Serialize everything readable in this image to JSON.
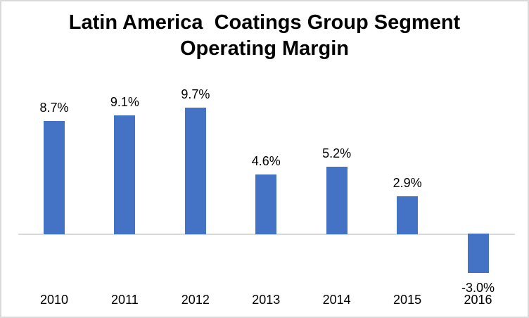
{
  "window": {
    "background": "#ffffff",
    "border_color": "#d9d9d9"
  },
  "chart_data": {
    "type": "bar",
    "title": "Latin America Coatings Group Segment Operating Margin",
    "title_lines": [
      "Latin America  Coatings Group Segment",
      "Operating Margin"
    ],
    "categories": [
      "2010",
      "2011",
      "2012",
      "2013",
      "2014",
      "2015",
      "2016"
    ],
    "values": [
      8.7,
      9.1,
      9.7,
      4.6,
      5.2,
      2.9,
      -3.0
    ],
    "value_labels": [
      "8.7%",
      "9.1%",
      "9.7%",
      "4.6%",
      "5.2%",
      "2.9%",
      "-3.0%"
    ],
    "bar_color": "#4472c4",
    "baseline_color": "#d9d9d9",
    "text_color": "#000000",
    "xlabel": "",
    "ylabel": "",
    "ylim": [
      -4,
      10
    ],
    "grid": false,
    "legend": false,
    "value_label_position": "outside-end",
    "unit": "percent"
  }
}
